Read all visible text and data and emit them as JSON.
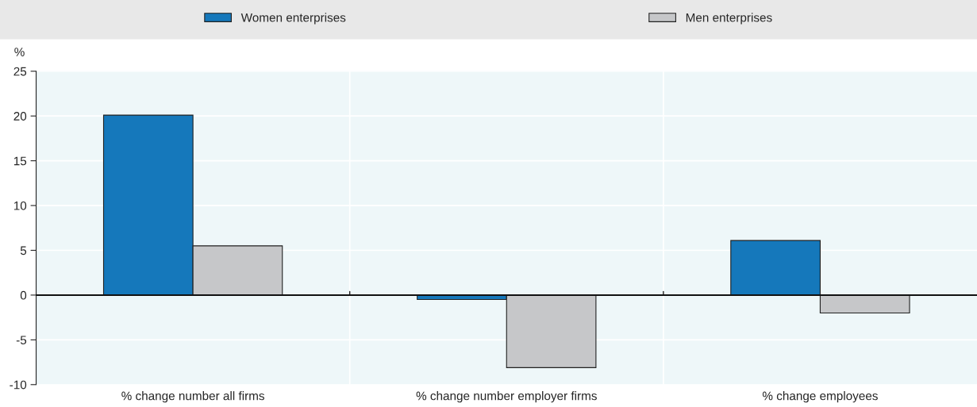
{
  "chart_data": {
    "type": "bar",
    "ylabel": "%",
    "categories": [
      "% change number all firms",
      "% change number employer firms",
      "% change employees"
    ],
    "series": [
      {
        "name": "Women enterprises",
        "color": "#1578bb",
        "values": [
          20.1,
          -0.5,
          6.1
        ]
      },
      {
        "name": "Men enterprises",
        "color": "#c6c7c9",
        "values": [
          5.5,
          -8.1,
          -2.0
        ]
      }
    ],
    "ylim": [
      -10,
      25
    ],
    "yticks": [
      -10,
      -5,
      0,
      5,
      10,
      15,
      20,
      25
    ],
    "grid": "y",
    "legend": "top"
  }
}
